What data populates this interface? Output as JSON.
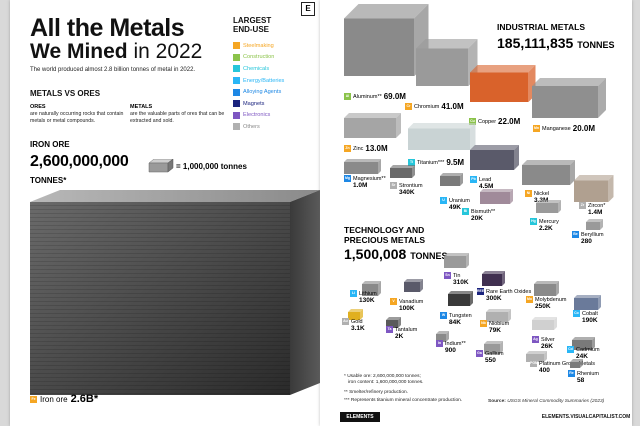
{
  "header": {
    "title_line1": "All the Metals",
    "title_line2_bold": "We Mined",
    "title_line2_rest": " in 2022",
    "subtitle": "The world produced almost 2.8 billion tonnes of metal in 2022.",
    "logo_letter": "E"
  },
  "end_use": {
    "title_line1": "LARGEST",
    "title_line2": "END-USE",
    "items": [
      {
        "label": "Steelmaking",
        "color": "#f5a623"
      },
      {
        "label": "Construction",
        "color": "#8bc34a"
      },
      {
        "label": "Chemicals",
        "color": "#26c6da"
      },
      {
        "label": "Energy/Batteries",
        "color": "#29b6f6"
      },
      {
        "label": "Alloying Agents",
        "color": "#1e88e5"
      },
      {
        "label": "Magnets",
        "color": "#1a237e"
      },
      {
        "label": "Electronics",
        "color": "#7e57c2"
      },
      {
        "label": "Others",
        "color": "#b0b0b0"
      }
    ]
  },
  "metals_vs_ores": {
    "title": "METALS VS ORES",
    "ores_heading": "ORES",
    "ores_text": "are naturally occurring rocks that contain metals or metal compounds.",
    "metals_heading": "METALS",
    "metals_text": "are the valuable parts of ores that can be extracted and sold."
  },
  "iron_ore": {
    "heading": "IRON ORE",
    "value": "2,600,000,000",
    "unit": "TONNES*",
    "scale_label": "= 1,000,000 tonnes",
    "label_name": "Iron ore",
    "label_value": "2.6B*",
    "tag": "Fe"
  },
  "industrial": {
    "heading": "INDUSTRIAL METALS",
    "value": "185,111,835",
    "unit": "TONNES",
    "metals": [
      {
        "tag": "Al",
        "name": "Aluminum**",
        "value": "69.0M",
        "color": "#8bc34a"
      },
      {
        "tag": "Cr",
        "name": "Chromium",
        "value": "41.0M",
        "color": "#f5a623"
      },
      {
        "tag": "Cu",
        "name": "Copper",
        "value": "22.0M",
        "color": "#8bc34a"
      },
      {
        "tag": "Mn",
        "name": "Manganese",
        "value": "20.0M",
        "color": "#f5a623"
      },
      {
        "tag": "Zn",
        "name": "Zinc",
        "value": "13.0M",
        "color": "#f5a623"
      },
      {
        "tag": "Ti",
        "name": "Titanium***",
        "value": "9.5M",
        "color": "#26c6da"
      },
      {
        "tag": "Mg",
        "name": "Magnesium**",
        "value": "1.0M",
        "color": "#1e88e5"
      },
      {
        "tag": "Sr",
        "name": "Strontium",
        "value": "340K",
        "color": "#b0b0b0"
      },
      {
        "tag": "U",
        "name": "Uranium",
        "value": "49K",
        "color": "#29b6f6"
      },
      {
        "tag": "Pb",
        "name": "Lead",
        "value": "4.5M",
        "color": "#29b6f6"
      },
      {
        "tag": "Bi",
        "name": "Bismuth**",
        "value": "20K",
        "color": "#26c6da"
      },
      {
        "tag": "Ni",
        "name": "Nickel",
        "value": "3.3M",
        "color": "#f5a623"
      },
      {
        "tag": "Hg",
        "name": "Mercury",
        "value": "2.2K",
        "color": "#26c6da"
      },
      {
        "tag": "Zr",
        "name": "Zircon*",
        "value": "1.4M",
        "color": "#b0b0b0"
      },
      {
        "tag": "Be",
        "name": "Beryllium",
        "value": "280",
        "color": "#1e88e5"
      }
    ]
  },
  "technology": {
    "heading_line1": "TECHNOLOGY AND",
    "heading_line2": "PRECIOUS METALS",
    "value": "1,500,008",
    "unit": "TONNES",
    "metals": [
      {
        "tag": "Sn",
        "name": "Tin",
        "value": "310K",
        "color": "#7e57c2"
      },
      {
        "tag": "Li",
        "name": "Lithium",
        "value": "130K",
        "color": "#29b6f6"
      },
      {
        "tag": "V",
        "name": "Vanadium",
        "value": "100K",
        "color": "#f5a623"
      },
      {
        "tag": "REE",
        "name": "Rare Earth Oxides",
        "value": "300K",
        "color": "#1a237e"
      },
      {
        "tag": "Mo",
        "name": "Molybdenum",
        "value": "250K",
        "color": "#f5a623"
      },
      {
        "tag": "W",
        "name": "Tungsten",
        "value": "84K",
        "color": "#1e88e5"
      },
      {
        "tag": "Co",
        "name": "Cobalt",
        "value": "190K",
        "color": "#29b6f6"
      },
      {
        "tag": "Au",
        "name": "Gold",
        "value": "3.1K",
        "color": "#b0b0b0"
      },
      {
        "tag": "Ta",
        "name": "Tantalum",
        "value": "2K",
        "color": "#7e57c2"
      },
      {
        "tag": "Nb",
        "name": "Niobium",
        "value": "79K",
        "color": "#f5a623"
      },
      {
        "tag": "Ag",
        "name": "Silver",
        "value": "26K",
        "color": "#7e57c2"
      },
      {
        "tag": "In",
        "name": "Indium**",
        "value": "900",
        "color": "#7e57c2"
      },
      {
        "tag": "Ga",
        "name": "Gallium",
        "value": "550",
        "color": "#7e57c2"
      },
      {
        "tag": "Cd",
        "name": "Cadmium",
        "value": "24K",
        "color": "#29b6f6"
      },
      {
        "tag": "PGM",
        "name": "Platinum Group Metals",
        "value": "400",
        "color": "#b0b0b0"
      },
      {
        "tag": "Re",
        "name": "Rhenium",
        "value": "58",
        "color": "#1e88e5"
      }
    ]
  },
  "footnotes": {
    "f1": "* Usable ore: 2,600,000,000 tonnes;",
    "f1b": "iron content: 1,600,000,000 tonnes.",
    "f2": "** Smelter/refinery production.",
    "f3": "*** Represents titanium mineral concentrate production.",
    "source_label": "Source:",
    "source_text": "USGS Mineral Commodity Summaries (2023)"
  },
  "footer": {
    "left": "ELEMENTS",
    "right": "ELEMENTS.VISUALCAPITALIST.COM"
  }
}
